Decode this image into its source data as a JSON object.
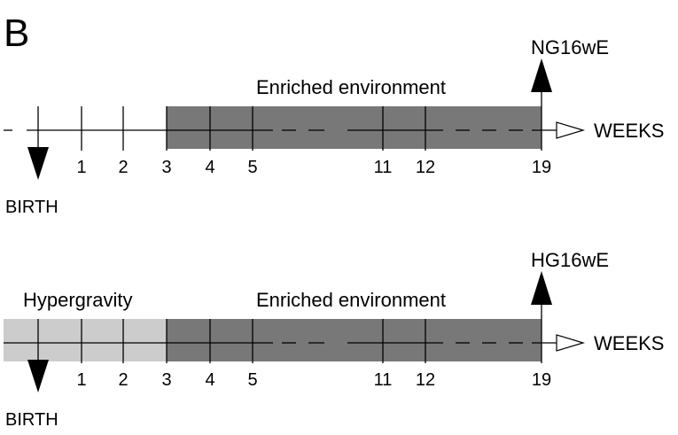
{
  "panel_label": "B",
  "axis_label": "WEEKS",
  "birth_label": "BIRTH",
  "week_ticks": [
    "1",
    "2",
    "3",
    "4",
    "5",
    "11",
    "12",
    "19"
  ],
  "colors": {
    "enriched": "#787878",
    "hypergravity": "#cccccc",
    "line": "#000000"
  },
  "timelines": [
    {
      "end_label": "NG16wE",
      "enriched_label": "Enriched environment",
      "hypergravity_label": ""
    },
    {
      "end_label": "HG16wE",
      "enriched_label": "Enriched environment",
      "hypergravity_label": "Hypergravity"
    }
  ]
}
